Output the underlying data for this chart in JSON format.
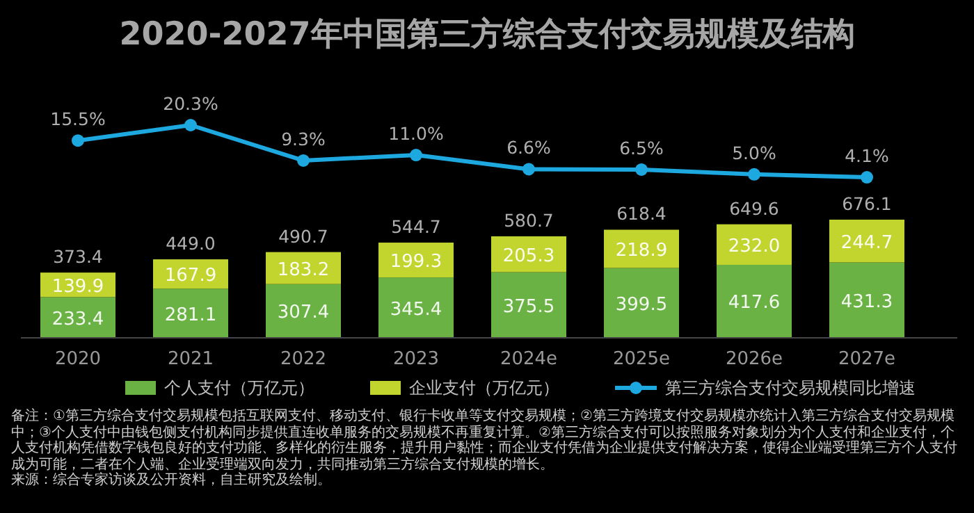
{
  "chart_data": [
    {
      "type": "line",
      "title": "2020-2027年中国第三方综合支付交易规模及结构",
      "categories": [
        null,
        null,
        null,
        null,
        null,
        null,
        null,
        null
      ],
      "marker": "circle",
      "legend": "bottom",
      "data_labels": true,
      "series": [
        {
          "name": "第三方综合支付交易规模同比增速",
          "color": "#1ea8e0",
          "values": [
            15.5,
            20.3,
            9.3,
            11.0,
            6.6,
            6.5,
            5.0,
            4.1
          ],
          "value_labels": [
            "15.5%",
            "20.3%",
            "9.3%",
            "11.0%",
            "6.6%",
            "6.5%",
            "5.0%",
            "4.1%"
          ]
        }
      ]
    },
    {
      "type": "bar",
      "categories": [
        "2020",
        "2021",
        "2022",
        "2023",
        "2024e",
        "2025e",
        "2026e",
        "2027e"
      ],
      "stacked": true,
      "data_labels": true,
      "legend": "bottom",
      "series": [
        {
          "name": "个人支付（万亿元）",
          "color": "#6ab244",
          "values": [
            233.4,
            281.1,
            307.4,
            345.4,
            375.5,
            399.5,
            417.6,
            431.3
          ],
          "value_labels": [
            "233.4",
            "281.1",
            "307.4",
            "345.4",
            "375.5",
            "399.5",
            "417.6",
            "431.3"
          ]
        },
        {
          "name": "企业支付（万亿元）",
          "color": "#c2d52f",
          "values": [
            139.9,
            167.9,
            183.2,
            199.3,
            205.3,
            218.9,
            232.0,
            244.7
          ],
          "value_labels": [
            "139.9",
            "167.9",
            "183.2",
            "199.3",
            "205.3",
            "218.9",
            "232.0",
            "244.7"
          ]
        }
      ],
      "totals": [
        "373.4",
        "449.0",
        "490.7",
        "544.7",
        "580.7",
        "618.4",
        "649.6",
        "676.1"
      ],
      "annotations": [
        "备注：①第三方综合支付交易规模包括互联网支付、移动支付、银行卡收单等支付交易规模；②第三方跨境支付交易规模亦统计入第三方综合支付交易规模中；③个人支付中由钱包侧支付机构同步提供直连收单服务的交易规模不再重复计算。②第三方综合支付可以按照服务对象划分为个人支付和企业支付，个人支付机构凭借数字钱包良好的支付功能、多样化的衍生服务，提升用户黏性；而企业支付凭借为企业提供支付解决方案，使得企业端受理第三方个人支付成为可能，二者在个人端、企业受理端双向发力，共同推动第三方综合支付规模的增长。",
        "来源：综合专家访谈及公开资料，自主研究及绘制。"
      ]
    }
  ]
}
